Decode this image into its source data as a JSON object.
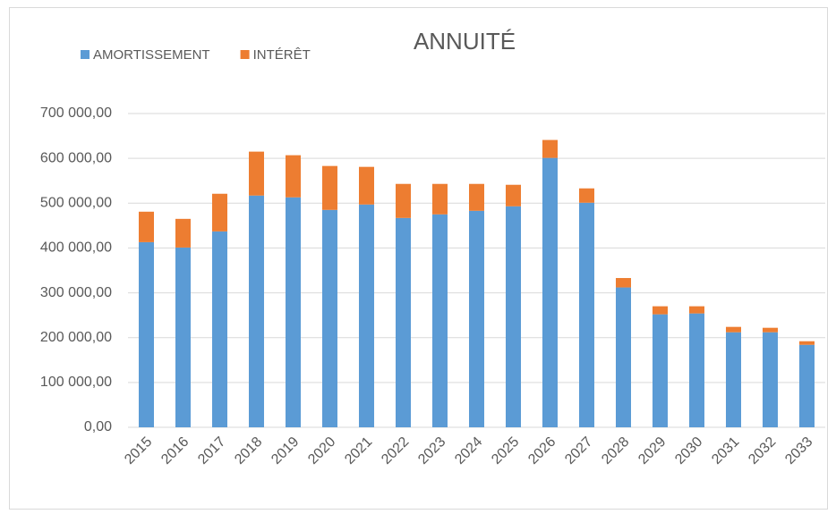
{
  "chart_data": {
    "type": "stacked_bar",
    "title": "ANNUITÉ",
    "categories": [
      "2015",
      "2016",
      "2017",
      "2018",
      "2019",
      "2020",
      "2021",
      "2022",
      "2023",
      "2024",
      "2025",
      "2026",
      "2027",
      "2028",
      "2029",
      "2030",
      "2031",
      "2032",
      "2033"
    ],
    "series": [
      {
        "name": "AMORTISSEMENT",
        "color": "#5b9bd5",
        "values": [
          413000,
          401000,
          437000,
          517000,
          513000,
          485000,
          497000,
          467000,
          475000,
          483000,
          493000,
          601000,
          501000,
          312000,
          252000,
          254000,
          212000,
          212000,
          184000
        ]
      },
      {
        "name": "INTÉRÊT",
        "color": "#ed7d31",
        "values": [
          68000,
          64000,
          84000,
          98000,
          94000,
          98000,
          84000,
          76000,
          68000,
          60000,
          48000,
          40000,
          32000,
          21000,
          18000,
          16000,
          12000,
          10000,
          8000
        ]
      }
    ],
    "ylim": [
      0,
      700000
    ],
    "yticks": [
      {
        "value": 0,
        "label": "0,00"
      },
      {
        "value": 100000,
        "label": "100 000,00"
      },
      {
        "value": 200000,
        "label": "200 000,00"
      },
      {
        "value": 300000,
        "label": "300 000,00"
      },
      {
        "value": 400000,
        "label": "400 000,00"
      },
      {
        "value": 500000,
        "label": "500 000,00"
      },
      {
        "value": 600000,
        "label": "600 000,00"
      },
      {
        "value": 700000,
        "label": "700 000,00"
      }
    ],
    "grid": true,
    "legend": "top-left"
  }
}
